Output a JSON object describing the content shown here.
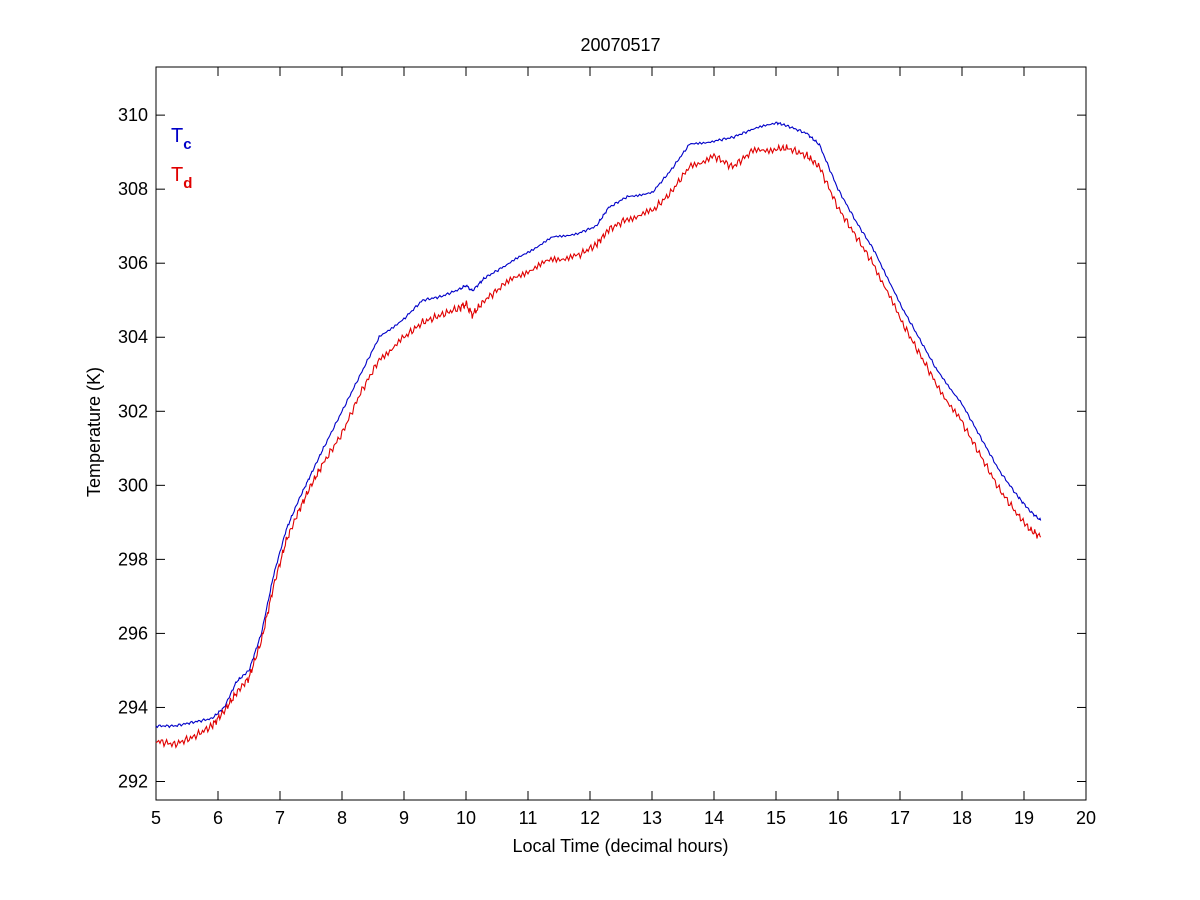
{
  "chart_data": {
    "type": "line",
    "title": "20070517",
    "xlabel": "Local Time (decimal hours)",
    "ylabel": "Temperature (K)",
    "xlim": [
      5,
      20
    ],
    "ylim": [
      291.5,
      311.3
    ],
    "xticks": [
      5,
      6,
      7,
      8,
      9,
      10,
      11,
      12,
      13,
      14,
      15,
      16,
      17,
      18,
      19,
      20
    ],
    "yticks": [
      292,
      294,
      296,
      298,
      300,
      302,
      304,
      306,
      308,
      310
    ],
    "grid": false,
    "legend_position": "top-left",
    "series": [
      {
        "name": "T",
        "subscript": "c",
        "color": "#0000c8",
        "x": [
          5.0,
          5.3,
          5.6,
          5.9,
          6.1,
          6.3,
          6.5,
          6.7,
          6.9,
          7.1,
          7.3,
          7.5,
          7.7,
          8.0,
          8.3,
          8.6,
          9.0,
          9.3,
          9.6,
          9.9,
          10.0,
          10.1,
          10.3,
          10.6,
          11.0,
          11.4,
          11.8,
          12.1,
          12.3,
          12.6,
          13.0,
          13.3,
          13.6,
          14.0,
          14.3,
          14.6,
          15.0,
          15.2,
          15.5,
          15.7,
          16.0,
          16.3,
          16.6,
          17.0,
          17.3,
          17.6,
          18.0,
          18.3,
          18.6,
          18.9,
          19.1,
          19.27
        ],
        "values": [
          293.5,
          293.5,
          293.6,
          293.7,
          294.0,
          294.7,
          295.0,
          296.0,
          297.6,
          298.8,
          299.6,
          300.3,
          301.0,
          302.0,
          303.0,
          304.0,
          304.5,
          305.0,
          305.1,
          305.3,
          305.4,
          305.25,
          305.6,
          305.9,
          306.3,
          306.7,
          306.8,
          307.0,
          307.5,
          307.8,
          307.9,
          308.5,
          309.2,
          309.3,
          309.4,
          309.6,
          309.8,
          309.7,
          309.5,
          309.2,
          308.0,
          307.1,
          306.3,
          304.9,
          304.0,
          303.1,
          302.2,
          301.3,
          300.4,
          299.7,
          299.3,
          299.05
        ]
      },
      {
        "name": "T",
        "subscript": "d",
        "color": "#e00000",
        "x": [
          5.0,
          5.3,
          5.6,
          5.9,
          6.1,
          6.3,
          6.5,
          6.7,
          6.9,
          7.1,
          7.3,
          7.5,
          7.7,
          8.0,
          8.3,
          8.6,
          9.0,
          9.3,
          9.6,
          9.9,
          10.0,
          10.1,
          10.3,
          10.6,
          11.0,
          11.4,
          11.8,
          12.1,
          12.3,
          12.6,
          13.0,
          13.3,
          13.6,
          14.0,
          14.3,
          14.6,
          15.0,
          15.2,
          15.5,
          15.7,
          16.0,
          16.3,
          16.6,
          17.0,
          17.3,
          17.6,
          18.0,
          18.3,
          18.6,
          18.9,
          19.1,
          19.27
        ],
        "values": [
          293.1,
          293.0,
          293.2,
          293.5,
          293.9,
          294.4,
          294.8,
          295.8,
          297.3,
          298.5,
          299.3,
          300.0,
          300.6,
          301.4,
          302.5,
          303.4,
          304.0,
          304.4,
          304.6,
          304.8,
          304.9,
          304.6,
          305.0,
          305.4,
          305.8,
          306.1,
          306.2,
          306.5,
          306.9,
          307.2,
          307.4,
          307.9,
          308.6,
          308.9,
          308.6,
          309.0,
          309.1,
          309.1,
          308.9,
          308.6,
          307.5,
          306.7,
          305.9,
          304.5,
          303.6,
          302.7,
          301.7,
          300.8,
          299.9,
          299.2,
          298.8,
          298.6
        ]
      }
    ]
  }
}
